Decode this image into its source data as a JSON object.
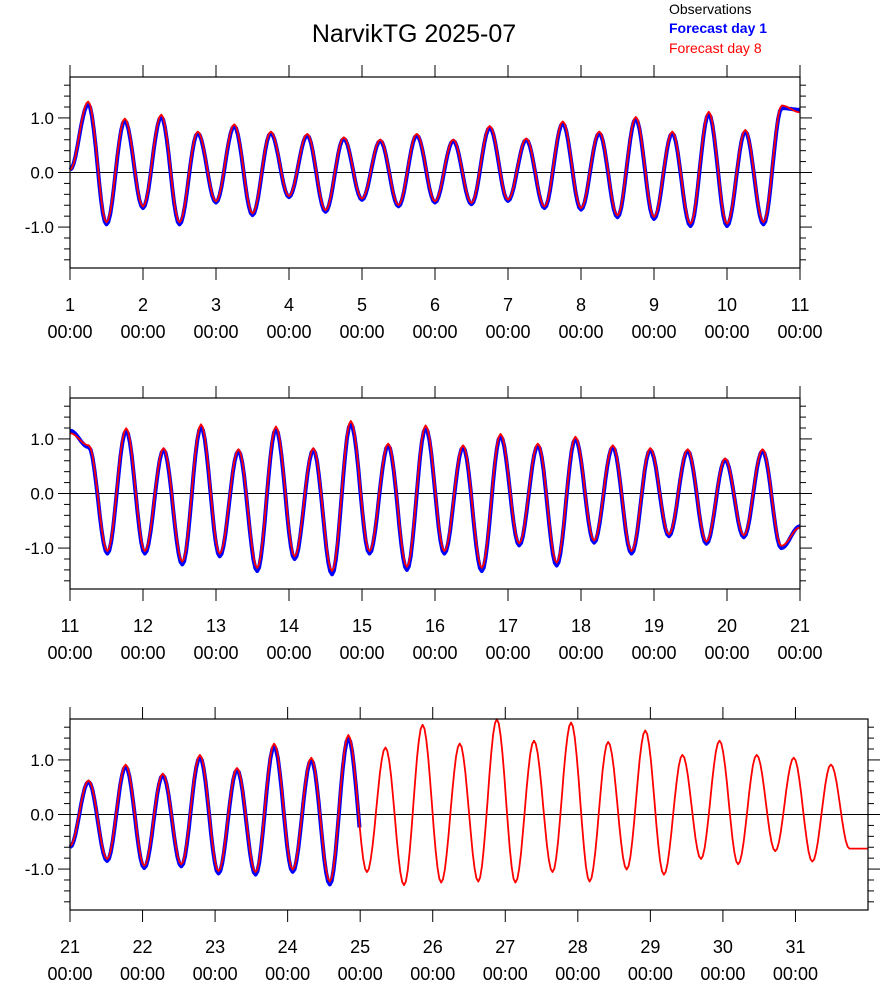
{
  "chart_data": {
    "type": "line",
    "title": "NarvikTG 2025-07",
    "legend": {
      "placement": "top-right",
      "entries": [
        {
          "label": "Observations",
          "color": "#000000"
        },
        {
          "label": "Forecast day 1",
          "color": "#0000ff"
        },
        {
          "label": "Forecast day 8",
          "color": "#ff0000"
        }
      ]
    },
    "y_ticks": [
      "1.0",
      "0.0",
      "-1.0"
    ],
    "y_tick_values": [
      1.0,
      0.0,
      -1.0
    ],
    "ylim": [
      -1.75,
      1.75
    ],
    "grid": "zero line only",
    "panels": [
      {
        "xlim_days": [
          1,
          11
        ],
        "x_tick_days": [
          1,
          2,
          3,
          4,
          5,
          6,
          7,
          8,
          9,
          10,
          11
        ],
        "x_tick_labels": [
          [
            "1",
            "00:00"
          ],
          [
            "2",
            "00:00"
          ],
          [
            "3",
            "00:00"
          ],
          [
            "4",
            "00:00"
          ],
          [
            "5",
            "00:00"
          ],
          [
            "6",
            "00:00"
          ],
          [
            "7",
            "00:00"
          ],
          [
            "8",
            "00:00"
          ],
          [
            "9",
            "00:00"
          ],
          [
            "10",
            "00:00"
          ],
          [
            "11",
            "00:00"
          ]
        ],
        "start_value": 0.05,
        "end_value": 1.15,
        "series_extent_days": {
          "observations": [
            1,
            11
          ],
          "forecast_day_1": [
            1,
            11
          ],
          "forecast_day_8": [
            1,
            11
          ]
        },
        "high_tides": [
          1.25,
          0.95,
          1.02,
          0.72,
          0.85,
          0.72,
          0.68,
          0.62,
          0.58,
          0.68,
          0.58,
          0.82,
          0.6,
          0.9,
          0.72,
          0.98,
          0.72,
          1.07,
          0.75,
          1.18
        ],
        "low_tides": [
          -0.95,
          -0.65,
          -0.95,
          -0.55,
          -0.78,
          -0.45,
          -0.72,
          -0.5,
          -0.62,
          -0.55,
          -0.58,
          -0.52,
          -0.65,
          -0.68,
          -0.82,
          -0.85,
          -0.98,
          -0.98,
          -0.95
        ]
      },
      {
        "xlim_days": [
          11,
          21
        ],
        "x_tick_days": [
          11,
          12,
          13,
          14,
          15,
          16,
          17,
          18,
          19,
          20,
          21
        ],
        "x_tick_labels": [
          [
            "11",
            "00:00"
          ],
          [
            "12",
            "00:00"
          ],
          [
            "13",
            "00:00"
          ],
          [
            "14",
            "00:00"
          ],
          [
            "15",
            "00:00"
          ],
          [
            "16",
            "00:00"
          ],
          [
            "17",
            "00:00"
          ],
          [
            "18",
            "00:00"
          ],
          [
            "19",
            "00:00"
          ],
          [
            "20",
            "00:00"
          ],
          [
            "21",
            "00:00"
          ]
        ],
        "start_value": 1.15,
        "end_value": -0.6,
        "series_extent_days": {
          "observations": [
            11,
            21
          ],
          "forecast_day_1": [
            11,
            21
          ],
          "forecast_day_8": [
            11,
            21
          ]
        },
        "high_tides": [
          0.85,
          1.15,
          0.8,
          1.22,
          0.78,
          1.18,
          0.8,
          1.28,
          0.88,
          1.2,
          0.85,
          1.05,
          0.88,
          1.0,
          0.85,
          0.8,
          0.78,
          0.62,
          0.78
        ],
        "low_tides": [
          -1.1,
          -1.1,
          -1.3,
          -1.15,
          -1.42,
          -1.2,
          -1.48,
          -1.1,
          -1.4,
          -1.1,
          -1.42,
          -0.95,
          -1.32,
          -0.9,
          -1.1,
          -0.78,
          -0.92,
          -0.8,
          -1.0
        ]
      },
      {
        "xlim_days": [
          21,
          32
        ],
        "x_tick_days": [
          21,
          22,
          23,
          24,
          25,
          26,
          27,
          28,
          29,
          30,
          31
        ],
        "x_tick_labels": [
          [
            "21",
            "00:00"
          ],
          [
            "22",
            "00:00"
          ],
          [
            "23",
            "00:00"
          ],
          [
            "24",
            "00:00"
          ],
          [
            "25",
            "00:00"
          ],
          [
            "26",
            "00:00"
          ],
          [
            "27",
            "00:00"
          ],
          [
            "28",
            "00:00"
          ],
          [
            "29",
            "00:00"
          ],
          [
            "30",
            "00:00"
          ],
          [
            "31",
            "00:00"
          ]
        ],
        "start_value": -0.6,
        "end_value": -0.6,
        "series_extent_days": {
          "observations": [
            21,
            25
          ],
          "forecast_day_1": [
            21,
            25
          ],
          "forecast_day_8": [
            21,
            32
          ]
        },
        "high_tides": [
          0.6,
          0.88,
          0.72,
          1.05,
          0.82,
          1.25,
          1.0,
          1.4,
          1.18,
          1.58,
          1.25,
          1.68,
          1.3,
          1.62,
          1.28,
          1.48,
          1.05,
          1.3,
          1.05,
          1.0,
          0.88
        ],
        "low_tides": [
          -0.85,
          -0.98,
          -0.95,
          -1.08,
          -1.1,
          -1.05,
          -1.28,
          -1.1,
          -1.35,
          -1.3,
          -1.28,
          -1.3,
          -1.1,
          -1.28,
          -1.05,
          -1.15,
          -0.85,
          -0.95,
          -0.7,
          -0.9,
          -0.65
        ]
      }
    ]
  }
}
